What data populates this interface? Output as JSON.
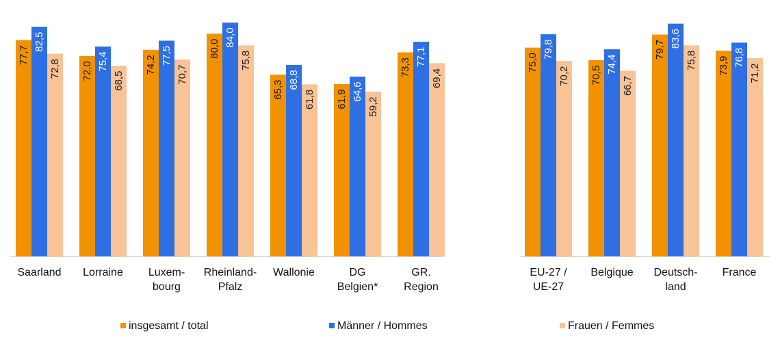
{
  "chart_data": {
    "type": "bar",
    "title": "",
    "xlabel": "",
    "ylabel": "",
    "ylim": [
      0,
      90
    ],
    "grid": false,
    "legend_position": "bottom",
    "categories": [
      [
        "Saarland"
      ],
      [
        "Lorraine"
      ],
      [
        "Luxem-",
        "bourg"
      ],
      [
        "Rheinland-",
        "Pfalz"
      ],
      [
        "Wallonie"
      ],
      [
        "DG",
        "Belgien*"
      ],
      [
        "GR.",
        "Region"
      ],
      [
        "EU-27 /",
        "UE-27"
      ],
      [
        "Belgique"
      ],
      [
        "Deutsch-",
        "land"
      ],
      [
        "France"
      ]
    ],
    "series": [
      {
        "name": "insgesamt / total",
        "color": "#F39200",
        "label_color": "#1a1a1a",
        "values": [
          77.7,
          72.0,
          74.2,
          80.0,
          65.3,
          61.9,
          73.3,
          75.0,
          70.5,
          79.7,
          73.9
        ],
        "labels": [
          "77,7",
          "72,0",
          "74,2",
          "80,0",
          "65,3",
          "61,9",
          "73,3",
          "75,0",
          "70,5",
          "79,7",
          "73,9"
        ]
      },
      {
        "name": "Männer / Hommes",
        "color": "#2F6FE4",
        "label_color": "#ffffff",
        "values": [
          82.5,
          75.4,
          77.5,
          84.0,
          68.8,
          64.6,
          77.1,
          79.8,
          74.4,
          83.6,
          76.8
        ],
        "labels": [
          "82,5",
          "75,4",
          "77,5",
          "84,0",
          "68,8",
          "64,6",
          "77,1",
          "79,8",
          "74,4",
          "83,6",
          "76,8"
        ]
      },
      {
        "name": "Frauen / Femmes",
        "color": "#F8C397",
        "label_color": "#1a1a1a",
        "values": [
          72.8,
          68.5,
          70.7,
          75.8,
          61.8,
          59.2,
          69.4,
          70.2,
          66.7,
          75.8,
          71.2
        ],
        "labels": [
          "72,8",
          "68,5",
          "70,7",
          "75,8",
          "61,8",
          "59,2",
          "69,4",
          "70,2",
          "66,7",
          "75,8",
          "71,2"
        ]
      }
    ]
  }
}
